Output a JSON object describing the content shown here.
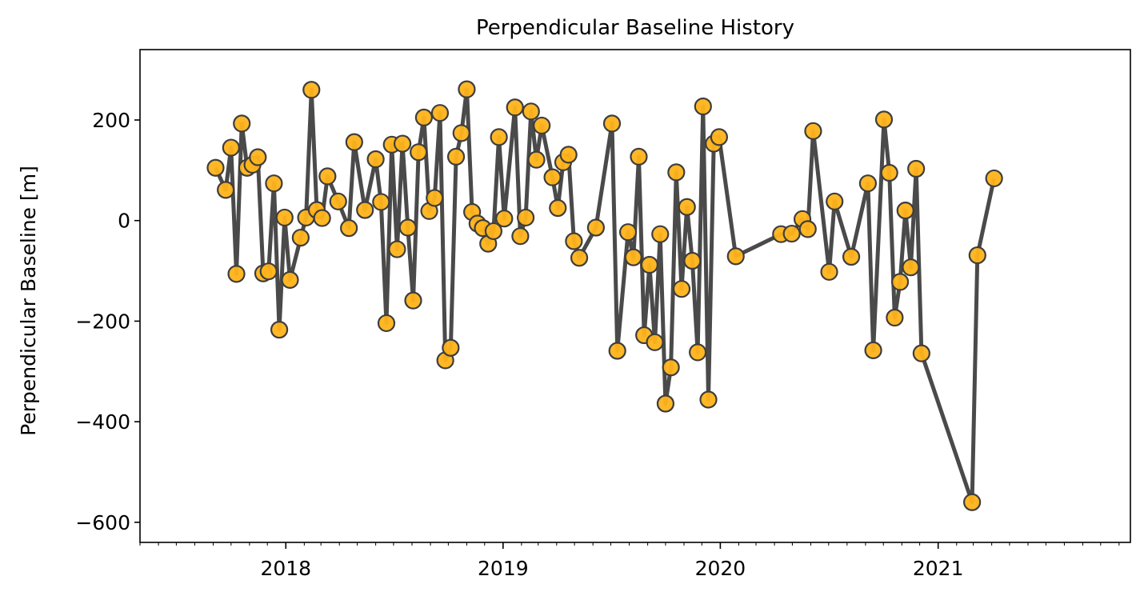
{
  "chart_data": {
    "type": "line",
    "title": "Perpendicular Baseline History",
    "xlabel": "",
    "ylabel": "Perpendicular Baseline [m]",
    "x_axis_kind": "date",
    "xlim": [
      "2017-05-01",
      "2021-11-20"
    ],
    "ylim": [
      -640,
      340
    ],
    "yticks": [
      200,
      0,
      -200,
      -400,
      -600
    ],
    "ytick_labels": [
      "200",
      "0",
      "−200",
      "−400",
      "−600"
    ],
    "xticks": [
      "2018-01-01",
      "2019-01-01",
      "2020-01-01",
      "2021-01-01"
    ],
    "xtick_labels": [
      "2018",
      "2019",
      "2020",
      "2021"
    ],
    "minor_xticks": "monthly",
    "grid": false,
    "legend": "none",
    "line_color": "#4a4a4a",
    "marker_face_color": "#ffb31a",
    "marker_edge_color": "#3d3d3d",
    "series": [
      {
        "points": [
          {
            "x": "2017-09-05",
            "y": 105
          },
          {
            "x": "2017-09-22",
            "y": 61
          },
          {
            "x": "2017-10-01",
            "y": 145
          },
          {
            "x": "2017-10-10",
            "y": -106
          },
          {
            "x": "2017-10-19",
            "y": 193
          },
          {
            "x": "2017-10-28",
            "y": 105
          },
          {
            "x": "2017-11-06",
            "y": 111
          },
          {
            "x": "2017-11-15",
            "y": 126
          },
          {
            "x": "2017-11-24",
            "y": -105
          },
          {
            "x": "2017-12-03",
            "y": -101
          },
          {
            "x": "2017-12-12",
            "y": 74
          },
          {
            "x": "2017-12-21",
            "y": -217
          },
          {
            "x": "2017-12-30",
            "y": 6
          },
          {
            "x": "2018-01-08",
            "y": -118
          },
          {
            "x": "2018-01-26",
            "y": -34
          },
          {
            "x": "2018-02-04",
            "y": 6
          },
          {
            "x": "2018-02-13",
            "y": 260
          },
          {
            "x": "2018-02-22",
            "y": 21
          },
          {
            "x": "2018-03-03",
            "y": 5
          },
          {
            "x": "2018-03-12",
            "y": 88
          },
          {
            "x": "2018-03-30",
            "y": 38
          },
          {
            "x": "2018-04-17",
            "y": -15
          },
          {
            "x": "2018-04-26",
            "y": 156
          },
          {
            "x": "2018-05-14",
            "y": 21
          },
          {
            "x": "2018-06-01",
            "y": 122
          },
          {
            "x": "2018-06-10",
            "y": 37
          },
          {
            "x": "2018-06-19",
            "y": -204
          },
          {
            "x": "2018-06-28",
            "y": 151
          },
          {
            "x": "2018-07-07",
            "y": -57
          },
          {
            "x": "2018-07-16",
            "y": 153
          },
          {
            "x": "2018-07-25",
            "y": -14
          },
          {
            "x": "2018-08-03",
            "y": -159
          },
          {
            "x": "2018-08-12",
            "y": 136
          },
          {
            "x": "2018-08-21",
            "y": 205
          },
          {
            "x": "2018-08-30",
            "y": 19
          },
          {
            "x": "2018-09-08",
            "y": 45
          },
          {
            "x": "2018-09-17",
            "y": 214
          },
          {
            "x": "2018-09-26",
            "y": -278
          },
          {
            "x": "2018-10-05",
            "y": -253
          },
          {
            "x": "2018-10-14",
            "y": 127
          },
          {
            "x": "2018-10-23",
            "y": 174
          },
          {
            "x": "2018-11-01",
            "y": 261
          },
          {
            "x": "2018-11-10",
            "y": 17
          },
          {
            "x": "2018-11-19",
            "y": -6
          },
          {
            "x": "2018-11-28",
            "y": -15
          },
          {
            "x": "2018-12-07",
            "y": -46
          },
          {
            "x": "2018-12-16",
            "y": -21
          },
          {
            "x": "2018-12-25",
            "y": 166
          },
          {
            "x": "2019-01-03",
            "y": 4
          },
          {
            "x": "2019-01-21",
            "y": 225
          },
          {
            "x": "2019-01-30",
            "y": -31
          },
          {
            "x": "2019-02-08",
            "y": 6
          },
          {
            "x": "2019-02-17",
            "y": 217
          },
          {
            "x": "2019-02-26",
            "y": 121
          },
          {
            "x": "2019-03-07",
            "y": 189
          },
          {
            "x": "2019-03-25",
            "y": 86
          },
          {
            "x": "2019-04-03",
            "y": 25
          },
          {
            "x": "2019-04-12",
            "y": 116
          },
          {
            "x": "2019-04-21",
            "y": 131
          },
          {
            "x": "2019-04-30",
            "y": -41
          },
          {
            "x": "2019-05-09",
            "y": -74
          },
          {
            "x": "2019-06-06",
            "y": -14
          },
          {
            "x": "2019-07-03",
            "y": 193
          },
          {
            "x": "2019-07-12",
            "y": -259
          },
          {
            "x": "2019-07-30",
            "y": -23
          },
          {
            "x": "2019-08-08",
            "y": -73
          },
          {
            "x": "2019-08-17",
            "y": 127
          },
          {
            "x": "2019-08-26",
            "y": -228
          },
          {
            "x": "2019-09-04",
            "y": -88
          },
          {
            "x": "2019-09-13",
            "y": -242
          },
          {
            "x": "2019-09-22",
            "y": -27
          },
          {
            "x": "2019-10-01",
            "y": -364
          },
          {
            "x": "2019-10-10",
            "y": -292
          },
          {
            "x": "2019-10-19",
            "y": 96
          },
          {
            "x": "2019-10-28",
            "y": -136
          },
          {
            "x": "2019-11-06",
            "y": 27
          },
          {
            "x": "2019-11-15",
            "y": -80
          },
          {
            "x": "2019-11-24",
            "y": -262
          },
          {
            "x": "2019-12-03",
            "y": 227
          },
          {
            "x": "2019-12-12",
            "y": -356
          },
          {
            "x": "2019-12-21",
            "y": 153
          },
          {
            "x": "2019-12-30",
            "y": 166
          },
          {
            "x": "2020-01-27",
            "y": -71
          },
          {
            "x": "2020-04-12",
            "y": -27
          },
          {
            "x": "2020-04-30",
            "y": -26
          },
          {
            "x": "2020-05-18",
            "y": 3
          },
          {
            "x": "2020-05-27",
            "y": -17
          },
          {
            "x": "2020-06-05",
            "y": 178
          },
          {
            "x": "2020-07-02",
            "y": -102
          },
          {
            "x": "2020-07-11",
            "y": 38
          },
          {
            "x": "2020-08-08",
            "y": -72
          },
          {
            "x": "2020-09-05",
            "y": 74
          },
          {
            "x": "2020-09-14",
            "y": -258
          },
          {
            "x": "2020-10-02",
            "y": 201
          },
          {
            "x": "2020-10-11",
            "y": 95
          },
          {
            "x": "2020-10-20",
            "y": -193
          },
          {
            "x": "2020-10-29",
            "y": -122
          },
          {
            "x": "2020-11-07",
            "y": 20
          },
          {
            "x": "2020-11-16",
            "y": -93
          },
          {
            "x": "2020-11-25",
            "y": 103
          },
          {
            "x": "2020-12-04",
            "y": -264
          },
          {
            "x": "2021-02-27",
            "y": -560
          },
          {
            "x": "2021-03-08",
            "y": -69
          },
          {
            "x": "2021-04-05",
            "y": 84
          }
        ]
      }
    ]
  }
}
